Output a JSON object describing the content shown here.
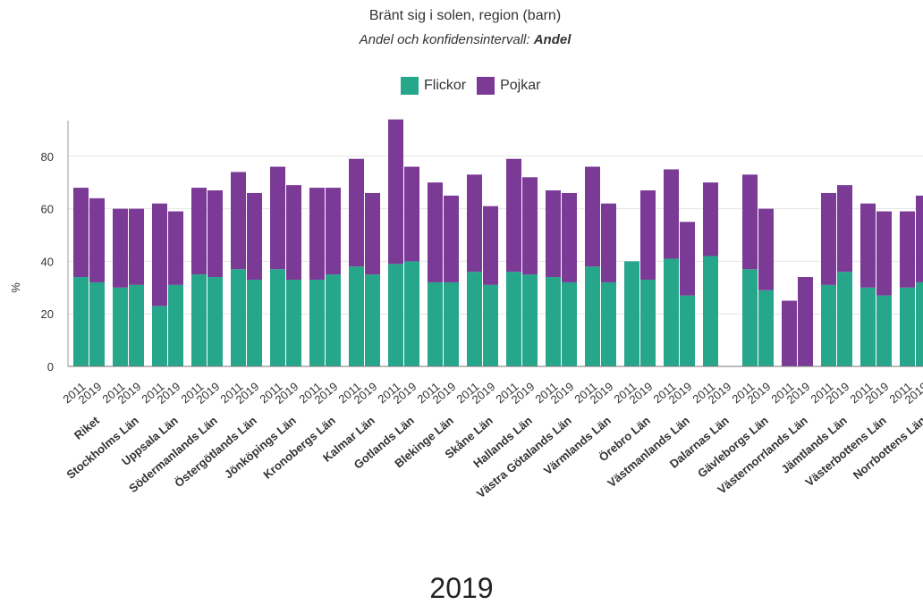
{
  "chart_data": {
    "type": "bar",
    "stacked": true,
    "title": "Bränt sig i solen, region (barn)",
    "subtitle_prefix": "Andel och konfidensintervall: ",
    "subtitle_emphasis": "Andel",
    "ylabel": "%",
    "ylim": [
      0,
      93
    ],
    "yticks": [
      0,
      20,
      40,
      60,
      80
    ],
    "grid": true,
    "legend_position": "top-center",
    "years": [
      "2011",
      "2019"
    ],
    "regions": [
      "Riket",
      "Stockholms Län",
      "Uppsala Län",
      "Södermanlands Län",
      "Östergötlands Län",
      "Jönköpings Län",
      "Kronobergs Län",
      "Kalmar Län",
      "Gotlands Län",
      "Blekinge Län",
      "Skåne Län",
      "Hallands Län",
      "Västra Götalands Län",
      "Värmlands Län",
      "Örebro Län",
      "Västmanlands Län",
      "Dalarnas Län",
      "Gävleborgs Län",
      "Västernorrlands Län",
      "Jämtlands Län",
      "Västerbottens Län",
      "Norrbottens Län"
    ],
    "series": [
      {
        "name": "Flickor",
        "color": "#26a68a",
        "values": [
          [
            34,
            32
          ],
          [
            30,
            31
          ],
          [
            23,
            31
          ],
          [
            35,
            34
          ],
          [
            37,
            33
          ],
          [
            37,
            33
          ],
          [
            33,
            35
          ],
          [
            38,
            35
          ],
          [
            39,
            40
          ],
          [
            32,
            32
          ],
          [
            36,
            31
          ],
          [
            36,
            35
          ],
          [
            34,
            32
          ],
          [
            38,
            32
          ],
          [
            40,
            33
          ],
          [
            41,
            27
          ],
          [
            42,
            0
          ],
          [
            37,
            29
          ],
          [
            0,
            0
          ],
          [
            31,
            36
          ],
          [
            30,
            27
          ],
          [
            30,
            32
          ]
        ]
      },
      {
        "name": "Pojkar",
        "color": "#7b3a96",
        "values": [
          [
            34,
            32
          ],
          [
            30,
            29
          ],
          [
            39,
            28
          ],
          [
            33,
            33
          ],
          [
            37,
            33
          ],
          [
            39,
            36
          ],
          [
            35,
            33
          ],
          [
            41,
            31
          ],
          [
            55,
            36
          ],
          [
            38,
            33
          ],
          [
            37,
            30
          ],
          [
            43,
            37
          ],
          [
            33,
            34
          ],
          [
            38,
            30
          ],
          [
            0,
            34
          ],
          [
            34,
            28
          ],
          [
            28,
            0
          ],
          [
            36,
            31
          ],
          [
            25,
            34
          ],
          [
            35,
            33
          ],
          [
            32,
            32
          ],
          [
            29,
            33
          ]
        ]
      }
    ]
  },
  "footer": {
    "year_label": "2019"
  }
}
